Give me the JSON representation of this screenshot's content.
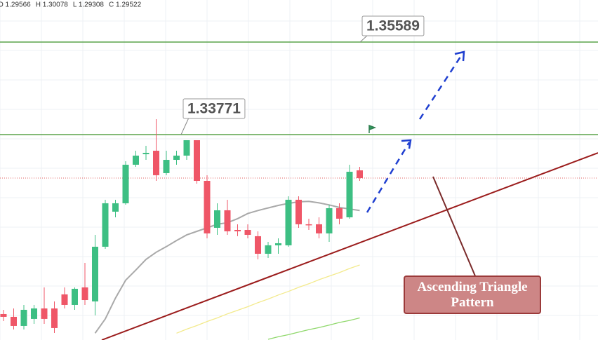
{
  "chart_data": {
    "type": "candlestick",
    "ohlc": [
      "O 1.29566",
      "H 1.30078",
      "L 1.29308",
      "C 1.29522"
    ],
    "annotation": "Ascending Triangle Pattern",
    "ylim": [
      1.29736,
      1.36415
    ],
    "up_color": "#3dbf83",
    "down_color": "#ef5667",
    "levels": [
      1.35589,
      1.33771
    ],
    "level_color": "#5aa34a",
    "last_price": 1.32917,
    "last_price_color": "#e06060",
    "categories": [
      null,
      null,
      null,
      null,
      null,
      null,
      null,
      null,
      null,
      null,
      null,
      null,
      null,
      null,
      null,
      null,
      null,
      null,
      null,
      null,
      null,
      null,
      null,
      null,
      null,
      null,
      null,
      null,
      null,
      null,
      null,
      null,
      null,
      null,
      null,
      null
    ],
    "open": [
      1.30246,
      1.30191,
      1.30012,
      1.3015,
      1.30356,
      1.30356,
      1.30632,
      1.30425,
      1.30769,
      1.30494,
      1.31568,
      1.32257,
      1.32422,
      1.33179,
      1.33386,
      1.33454,
      1.33014,
      1.33275,
      1.33358,
      1.33661,
      1.32862,
      1.3194,
      1.32284,
      1.31898,
      1.31898,
      1.31775,
      1.3143,
      1.31596,
      1.31596,
      1.32491,
      1.32009,
      1.32009,
      1.3183,
      1.32325,
      1.32146,
      1.33069
    ],
    "high": [
      1.30329,
      1.30356,
      1.30425,
      1.30425,
      1.30769,
      1.30494,
      1.30769,
      1.30769,
      1.31251,
      1.31802,
      1.32491,
      1.32491,
      1.33248,
      1.33454,
      1.33551,
      1.34074,
      1.33454,
      1.33454,
      1.33661,
      1.33661,
      1.32973,
      1.32422,
      1.32491,
      1.32009,
      1.32009,
      1.31871,
      1.31664,
      1.31733,
      1.32559,
      1.32559,
      1.32119,
      1.32146,
      1.32394,
      1.32422,
      1.33179,
      1.33138
    ],
    "low": [
      1.30108,
      1.29943,
      1.29943,
      1.30053,
      1.30053,
      1.29874,
      1.30356,
      1.30329,
      1.30425,
      1.30219,
      1.31527,
      1.32146,
      1.32394,
      1.33138,
      1.33275,
      1.32862,
      1.32973,
      1.33179,
      1.33275,
      1.32807,
      1.31733,
      1.31802,
      1.31802,
      1.31775,
      1.31733,
      1.3132,
      1.31348,
      1.3143,
      1.31568,
      1.3194,
      1.31898,
      1.31733,
      1.31664,
      1.32009,
      1.32119,
      1.32862
    ],
    "close": [
      1.30191,
      1.30012,
      1.30329,
      1.30356,
      1.3015,
      1.29971,
      1.30425,
      1.30742,
      1.30521,
      1.31568,
      1.32422,
      1.32422,
      1.33179,
      1.33358,
      1.33413,
      1.32973,
      1.33275,
      1.33358,
      1.33661,
      1.32862,
      1.3183,
      1.32284,
      1.31871,
      1.31871,
      1.31802,
      1.3143,
      1.31596,
      1.31637,
      1.32491,
      1.32009,
      1.31995,
      1.3183,
      1.32325,
      1.32119,
      1.33041,
      1.32917
    ],
    "series": [
      {
        "color": "#a9a9a9",
        "values": [
          null,
          null,
          null,
          null,
          null,
          null,
          null,
          null,
          null,
          1.2987,
          1.3015,
          1.3056,
          1.3091,
          1.3111,
          1.3132,
          1.3146,
          1.3157,
          1.3169,
          1.318,
          1.3187,
          1.3194,
          1.3201,
          1.3204,
          1.3212,
          1.3222,
          1.3228,
          1.3233,
          1.3238,
          1.3242,
          1.3245,
          1.3246,
          1.3243,
          1.3239,
          1.3234,
          1.3231,
          1.3228
        ]
      },
      {
        "color": "#f3ea8c",
        "values": [
          null,
          null,
          null,
          null,
          null,
          null,
          null,
          null,
          null,
          null,
          null,
          null,
          null,
          null,
          null,
          null,
          null,
          1.2987,
          1.2995,
          1.3002,
          1.301,
          1.3017,
          1.3025,
          1.3032,
          1.3039,
          1.3047,
          1.3054,
          1.3062,
          1.3069,
          1.3077,
          1.3084,
          1.3092,
          1.3099,
          1.3106,
          1.3114,
          1.3121
        ]
      },
      {
        "color": "#8fd86b",
        "values": [
          null,
          null,
          null,
          null,
          null,
          null,
          null,
          null,
          null,
          null,
          null,
          null,
          null,
          null,
          null,
          null,
          null,
          null,
          null,
          null,
          null,
          null,
          null,
          null,
          null,
          null,
          1.2975,
          1.298,
          1.2984,
          1.2989,
          1.2994,
          1.2998,
          1.3003,
          1.3008,
          1.3012,
          1.3017
        ]
      }
    ]
  }
}
